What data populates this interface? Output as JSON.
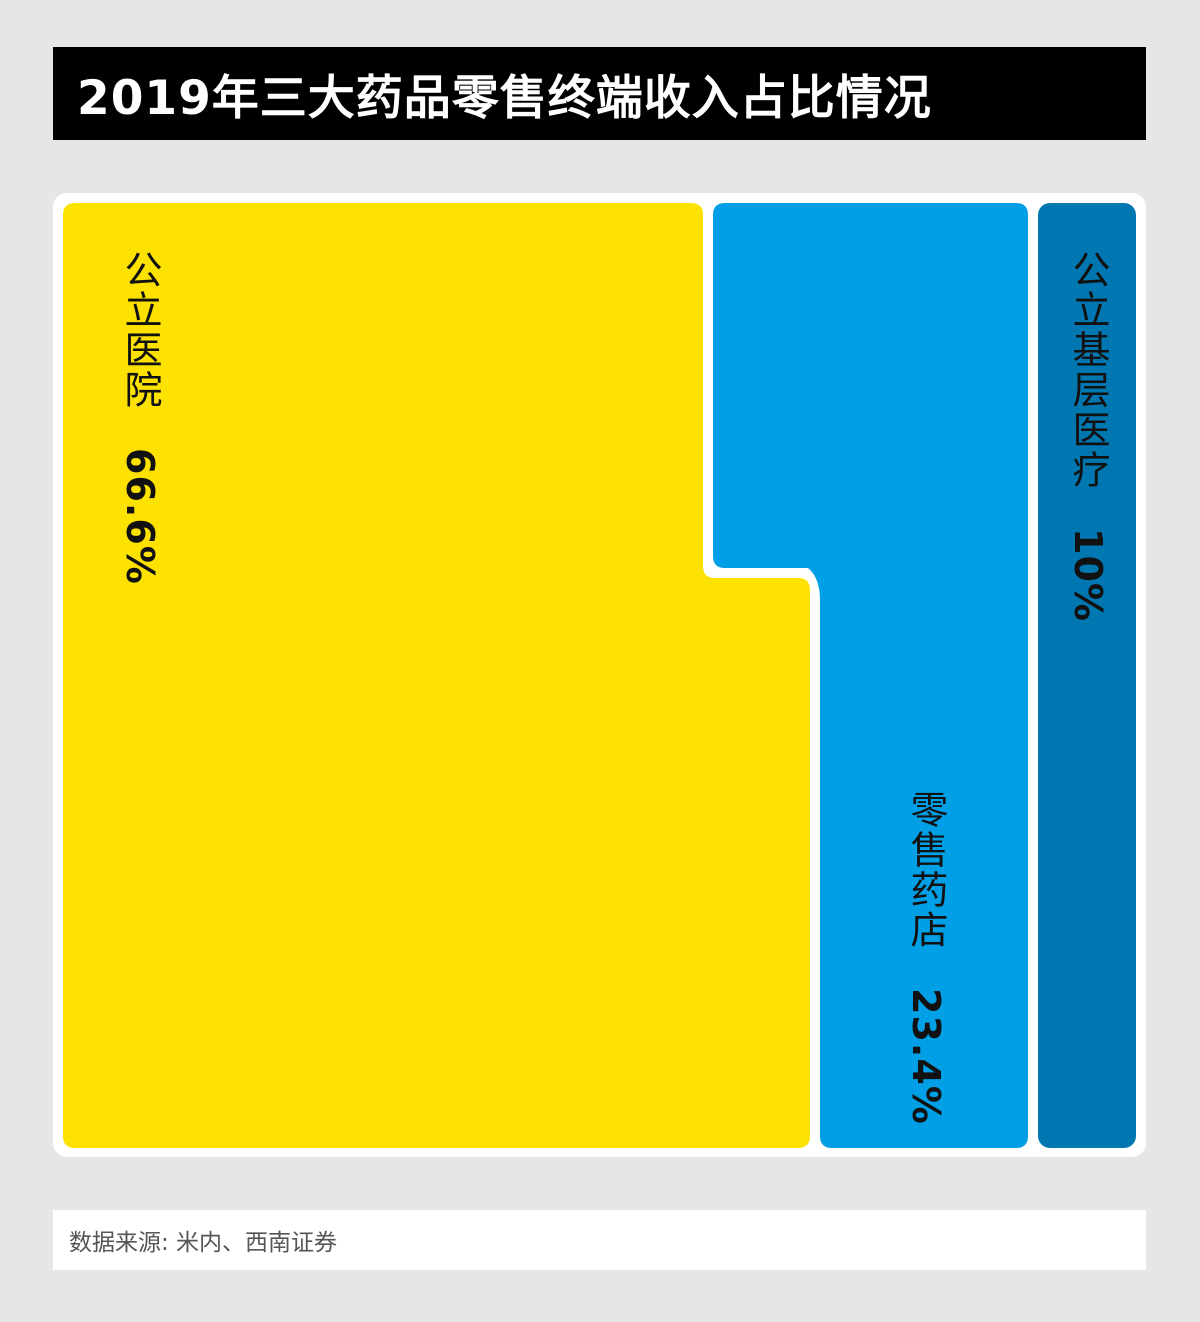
{
  "title": "2019年三大药品零售终端收入占比情况",
  "source": "数据来源: 米内、西南证券",
  "colors": {
    "hospital": "#fde100",
    "retail": "#009fe6",
    "primary": "#0077b0"
  },
  "chart_data": {
    "type": "treemap",
    "title": "2019年三大药品零售终端收入占比情况",
    "unit": "%",
    "segments": [
      {
        "name": "公立医院",
        "value": 66.6,
        "value_label": "66.6%"
      },
      {
        "name": "零售药店",
        "value": 23.4,
        "value_label": "23.4%"
      },
      {
        "name": "公立基层医疗",
        "value": 10,
        "value_label": "10%"
      }
    ]
  }
}
